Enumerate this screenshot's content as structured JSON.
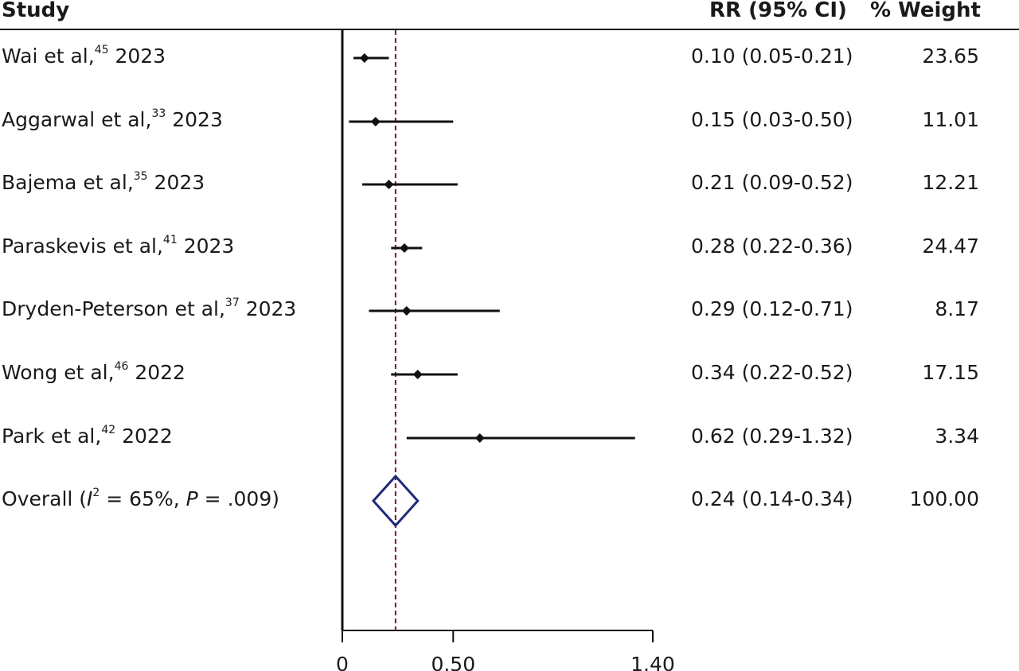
{
  "chart_data": {
    "type": "forest",
    "headers": {
      "study": "Study",
      "rr": "RR (95% CI)",
      "weight": "% Weight"
    },
    "studies": [
      {
        "author": "Wai et al,",
        "ref": "45",
        "year": "2023",
        "rr": 0.1,
        "lo": 0.05,
        "hi": 0.21,
        "rr_text": "0.10 (0.05-0.21)",
        "weight": "23.65"
      },
      {
        "author": "Aggarwal et al,",
        "ref": "33",
        "year": "2023",
        "rr": 0.15,
        "lo": 0.03,
        "hi": 0.5,
        "rr_text": "0.15 (0.03-0.50)",
        "weight": "11.01"
      },
      {
        "author": "Bajema et al,",
        "ref": "35",
        "year": "2023",
        "rr": 0.21,
        "lo": 0.09,
        "hi": 0.52,
        "rr_text": "0.21 (0.09-0.52)",
        "weight": "12.21"
      },
      {
        "author": "Paraskevis et al,",
        "ref": "41",
        "year": "2023",
        "rr": 0.28,
        "lo": 0.22,
        "hi": 0.36,
        "rr_text": "0.28 (0.22-0.36)",
        "weight": "24.47"
      },
      {
        "author": "Dryden-Peterson et al,",
        "ref": "37",
        "year": "2023",
        "rr": 0.29,
        "lo": 0.12,
        "hi": 0.71,
        "rr_text": "0.29 (0.12-0.71)",
        "weight": "8.17"
      },
      {
        "author": "Wong et al,",
        "ref": "46",
        "year": "2022",
        "rr": 0.34,
        "lo": 0.22,
        "hi": 0.52,
        "rr_text": "0.34 (0.22-0.52)",
        "weight": "17.15"
      },
      {
        "author": "Park et al,",
        "ref": "42",
        "year": "2022",
        "rr": 0.62,
        "lo": 0.29,
        "hi": 1.32,
        "rr_text": "0.62 (0.29-1.32)",
        "weight": "3.34"
      }
    ],
    "overall": {
      "label_prefix": "Overall (",
      "i_symbol": "I",
      "i_sup": "2",
      "mid": " = 65%, ",
      "p_symbol": "P",
      "p_value": " = .009)",
      "rr": 0.24,
      "lo": 0.14,
      "hi": 0.34,
      "rr_text": "0.24 (0.14-0.34)",
      "weight": "100.00"
    },
    "x_ticks": [
      {
        "value": 0,
        "label": "0"
      },
      {
        "value": 0.5,
        "label": "0.50"
      },
      {
        "value": 1.4,
        "label": "1.40"
      }
    ],
    "xlim": [
      0,
      1.4
    ],
    "reference_line": 0.24,
    "colors": {
      "marker": "#111111",
      "diamond": "#1f2a7a",
      "reference": "#7a1f2a",
      "axis": "#111111"
    }
  }
}
